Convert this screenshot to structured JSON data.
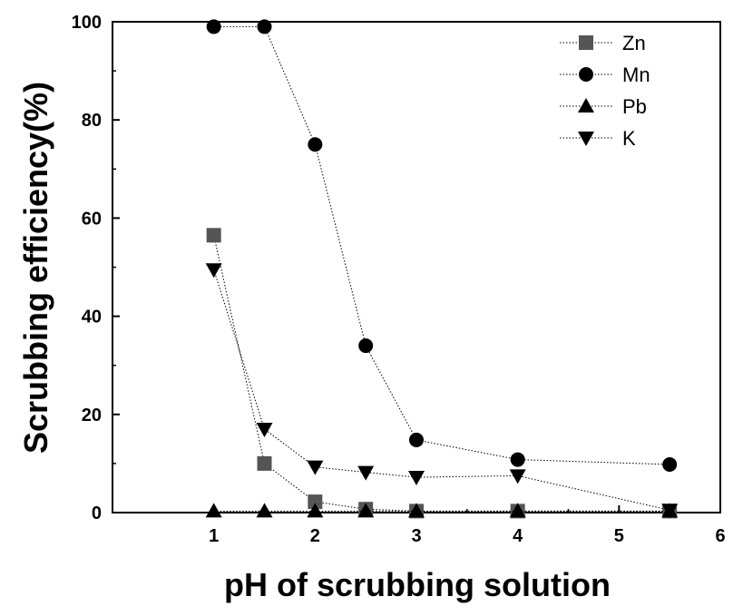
{
  "chart_data": {
    "type": "line",
    "title": "",
    "xlabel": "pH of scrubbing solution",
    "ylabel": "Scrubbing efficiency(%)",
    "xlim": [
      0,
      6
    ],
    "ylim": [
      0,
      100
    ],
    "x_ticks": [
      1,
      2,
      3,
      4,
      5,
      6
    ],
    "y_ticks": [
      0,
      20,
      40,
      60,
      80,
      100
    ],
    "grid": false,
    "legend_position": "top-right",
    "line_style": "dotted",
    "series": [
      {
        "name": "Zn",
        "marker": "square",
        "color": "#555555",
        "x": [
          1,
          1.5,
          2,
          2.5,
          3,
          4,
          5.5
        ],
        "y": [
          56.5,
          10,
          2.2,
          0.7,
          0.3,
          0.3,
          0.3
        ]
      },
      {
        "name": "Mn",
        "marker": "circle",
        "color": "#000000",
        "x": [
          1,
          1.5,
          2,
          2.5,
          3,
          4,
          5.5
        ],
        "y": [
          99,
          99,
          75,
          34,
          14.8,
          10.8,
          9.8
        ]
      },
      {
        "name": "Pb",
        "marker": "triangle-up",
        "color": "#000000",
        "x": [
          1,
          1.5,
          2,
          2.5,
          3,
          4,
          5.5
        ],
        "y": [
          0.3,
          0.3,
          0.3,
          0.3,
          0.3,
          0.3,
          0.3
        ]
      },
      {
        "name": "K",
        "marker": "triangle-down",
        "color": "#000000",
        "x": [
          1,
          1.5,
          2,
          2.5,
          3,
          4,
          5.5
        ],
        "y": [
          49.5,
          17,
          9.3,
          8.2,
          7.2,
          7.5,
          0.5
        ]
      }
    ]
  }
}
